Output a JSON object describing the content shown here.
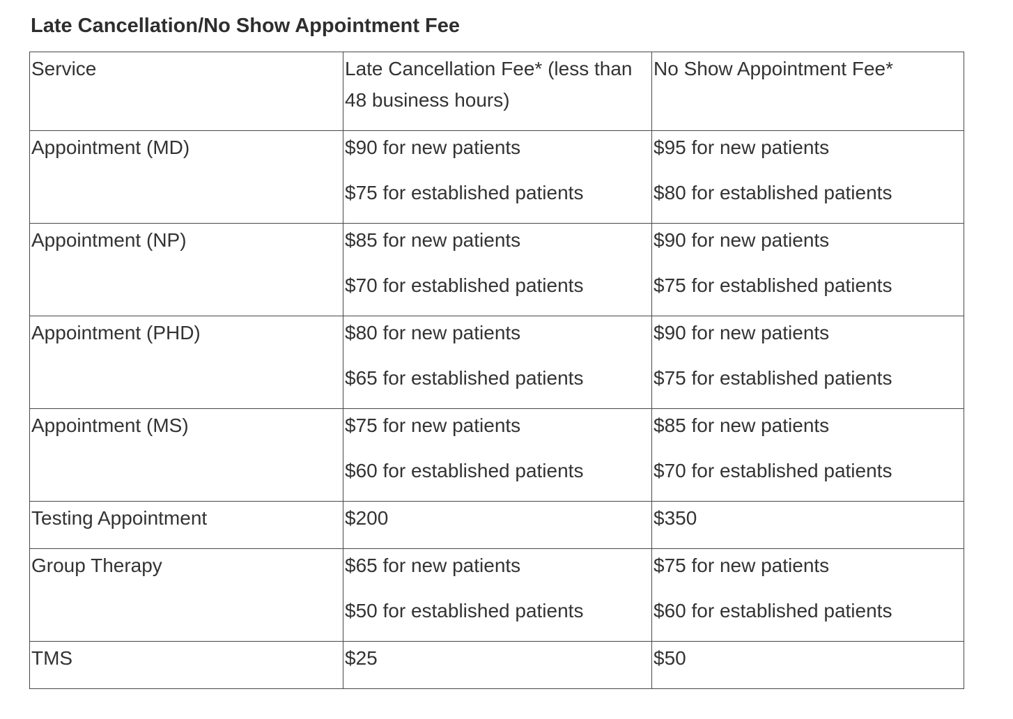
{
  "page": {
    "title": "Late Cancellation/No Show Appointment Fee"
  },
  "table": {
    "columns": [
      "Service",
      "Late Cancellation Fee* (less than 48 business hours)",
      "No Show Appointment Fee*"
    ],
    "rows": [
      {
        "service": "Appointment (MD)",
        "late_cancellation": [
          "$90 for new patients",
          "$75 for established patients"
        ],
        "no_show": [
          "$95 for new patients",
          "$80 for established patients"
        ]
      },
      {
        "service": "Appointment (NP)",
        "late_cancellation": [
          "$85 for new patients",
          "$70 for established patients"
        ],
        "no_show": [
          "$90 for new patients",
          "$75 for established patients"
        ]
      },
      {
        "service": "Appointment (PHD)",
        "late_cancellation": [
          "$80 for new patients",
          "$65 for established patients"
        ],
        "no_show": [
          "$90 for new patients",
          "$75 for established patients"
        ]
      },
      {
        "service": "Appointment (MS)",
        "late_cancellation": [
          "$75 for new patients",
          "$60 for established patients"
        ],
        "no_show": [
          "$85 for new patients",
          "$70 for established patients"
        ]
      },
      {
        "service": "Testing Appointment",
        "late_cancellation": [
          "$200"
        ],
        "no_show": [
          "$350"
        ]
      },
      {
        "service": "Group Therapy",
        "late_cancellation": [
          "$65 for new patients",
          "$50 for established patients"
        ],
        "no_show": [
          "$75 for new patients",
          "$60 for established patients"
        ]
      },
      {
        "service": "TMS",
        "late_cancellation": [
          "$25"
        ],
        "no_show": [
          "$50"
        ]
      }
    ]
  },
  "colors": {
    "text": "#333333",
    "border": "#474747",
    "background": "#ffffff"
  }
}
